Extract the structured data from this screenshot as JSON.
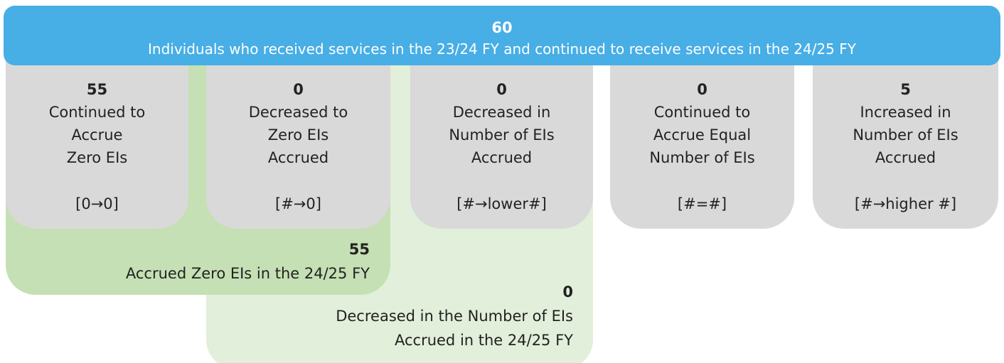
{
  "header": {
    "value": "60",
    "label": "Individuals who received services in the 23/24 FY and continued to receive services in the 24/25 FY"
  },
  "boxes": [
    {
      "value": "55",
      "lines": [
        "Continued to",
        "Accrue",
        "Zero EIs"
      ],
      "code": "[0→0]"
    },
    {
      "value": "0",
      "lines": [
        "Decreased to",
        "Zero EIs",
        "Accrued"
      ],
      "code": "[#→0]"
    },
    {
      "value": "0",
      "lines": [
        "Decreased in",
        "Number of EIs",
        "Accrued"
      ],
      "code": "[#→lower#]"
    },
    {
      "value": "0",
      "lines": [
        "Continued to",
        "Accrue Equal",
        "Number of EIs"
      ],
      "code": "[#=#]"
    },
    {
      "value": "5",
      "lines": [
        "Increased in",
        "Number of EIs",
        "Accrued"
      ],
      "code": "[#→higher #]"
    }
  ],
  "groups": [
    {
      "value": "55",
      "lines": [
        "Accrued Zero EIs in the 24/25 FY"
      ]
    },
    {
      "value": "0",
      "lines": [
        "Decreased in the Number of EIs",
        "Accrued in the 24/25 FY"
      ]
    }
  ]
}
